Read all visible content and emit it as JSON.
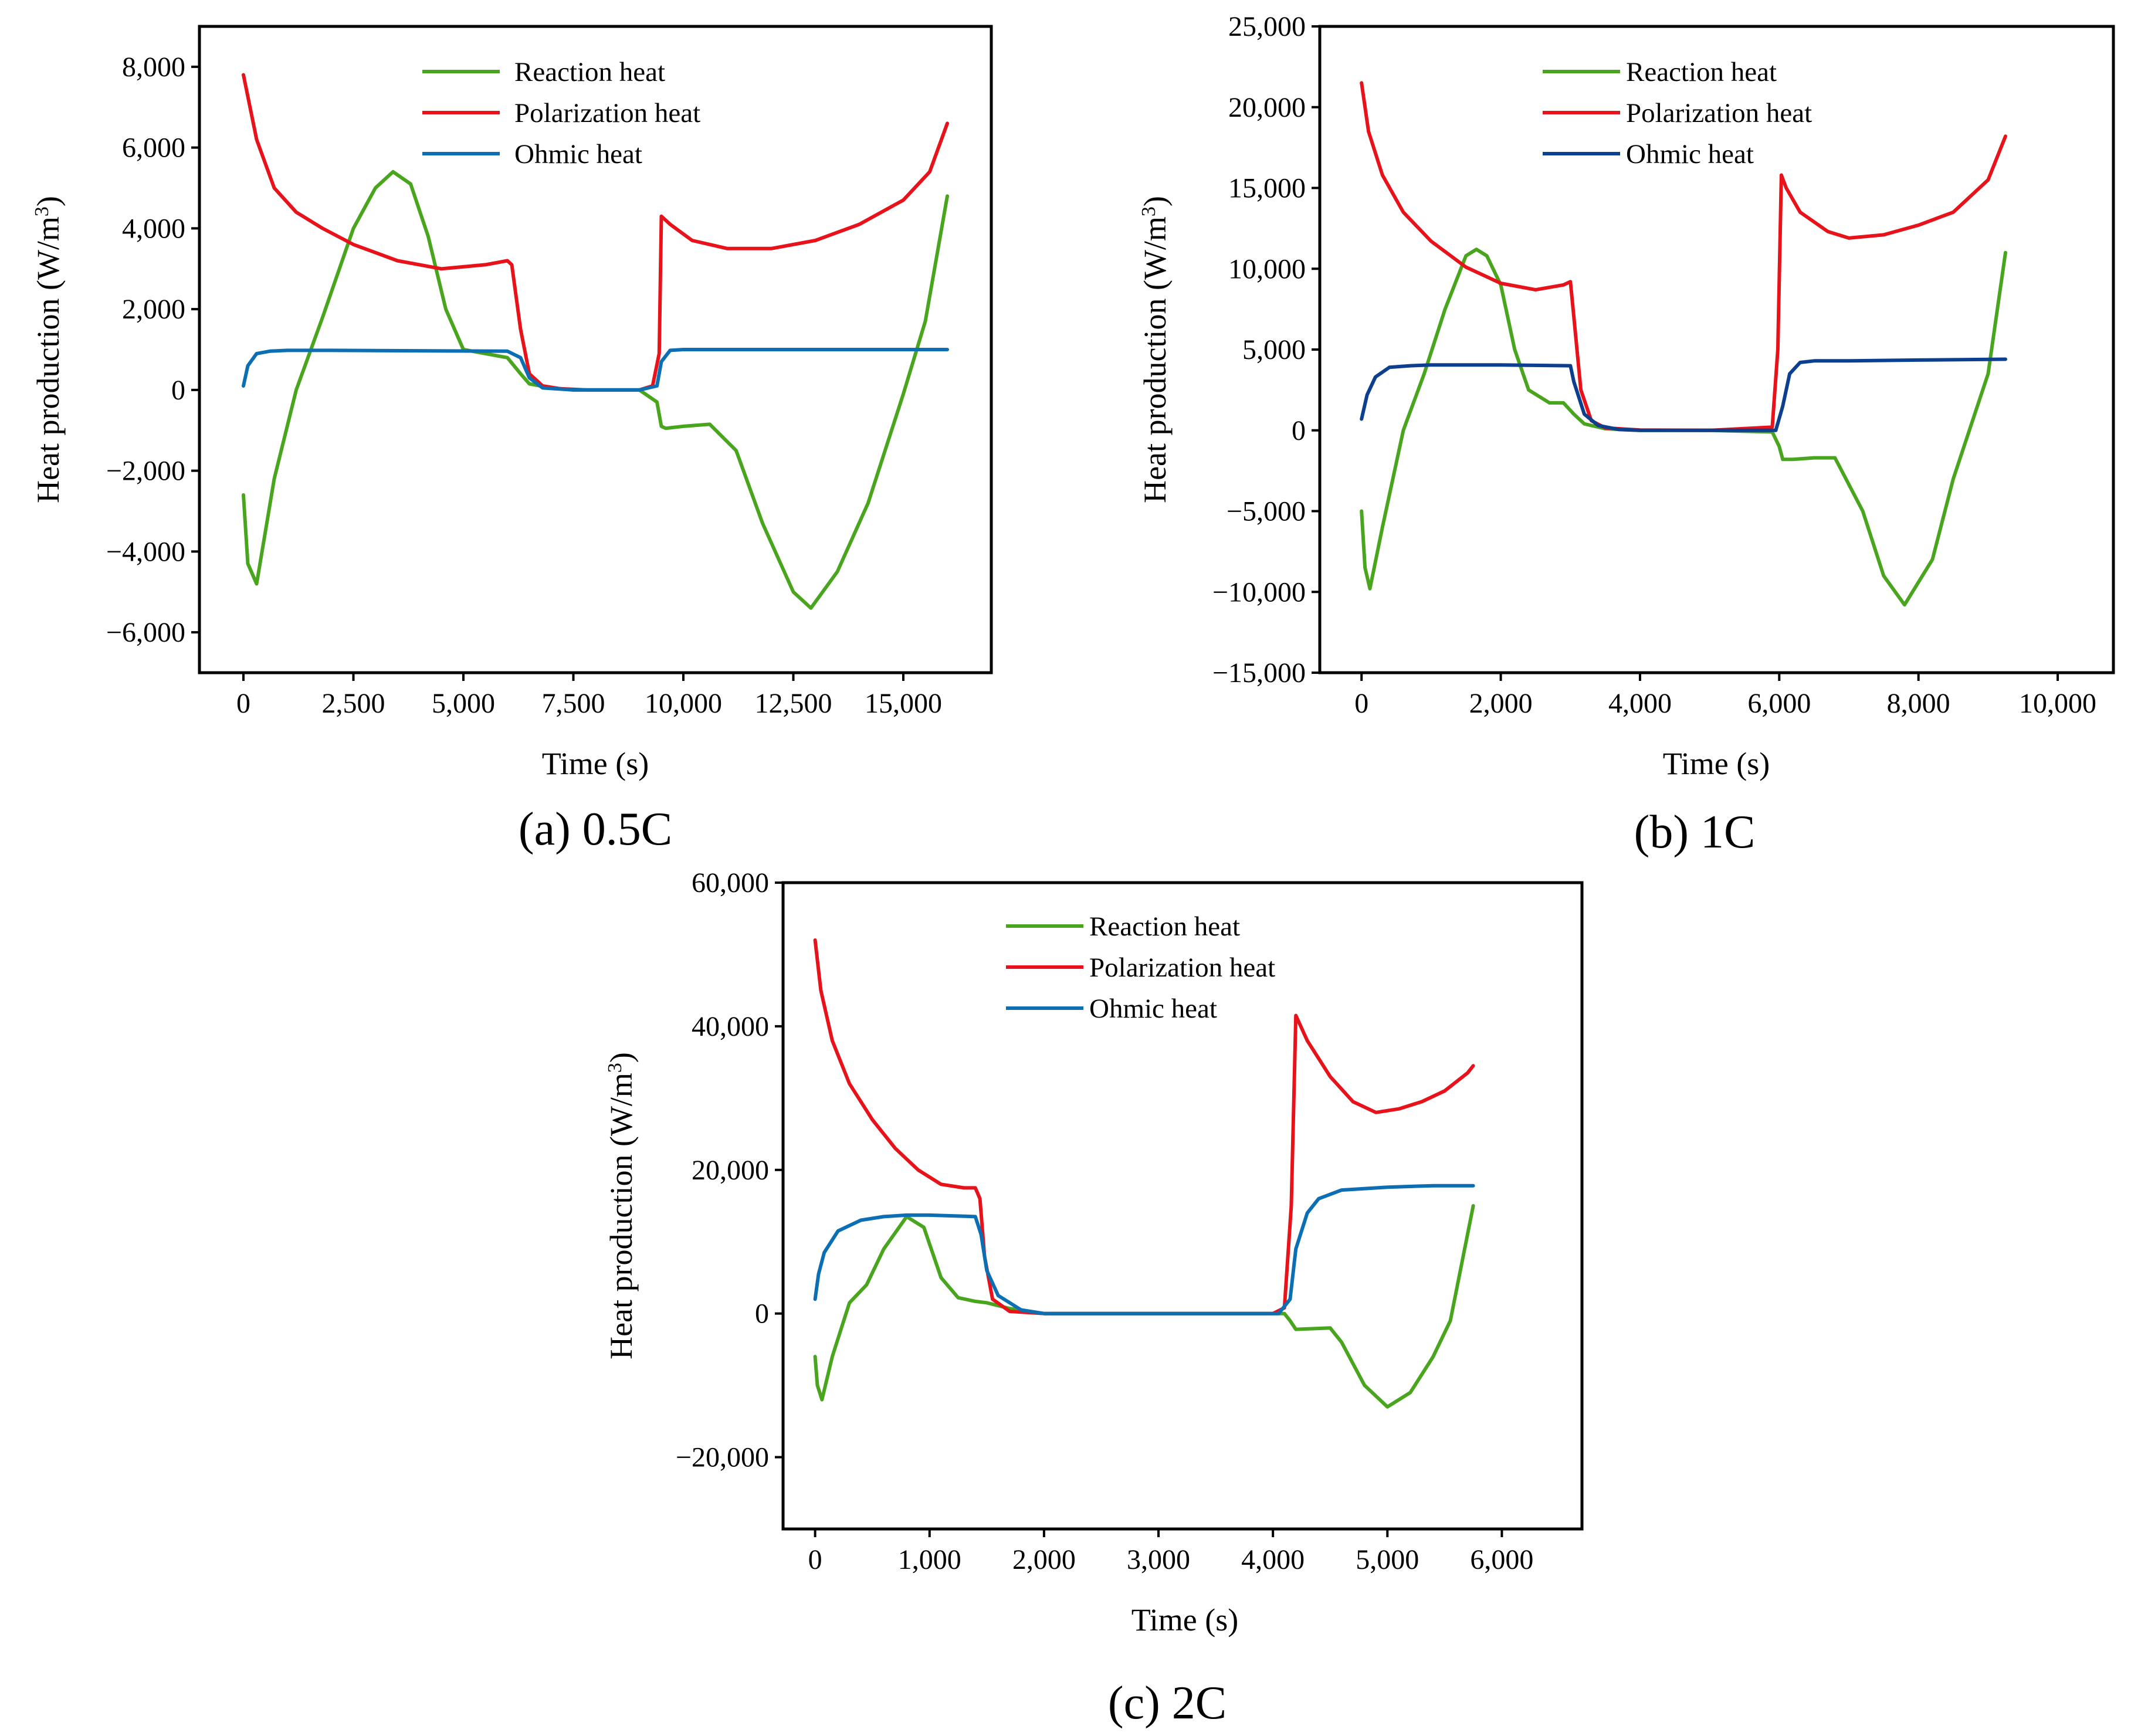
{
  "series_colors": {
    "reaction": "#4aa51e",
    "polarization": "#e8121a",
    "ohmic": "#0c6fb4",
    "ohmic_b": "#0d3f8f"
  },
  "chart_data": [
    {
      "type": "line",
      "id": "a",
      "caption": "(a) 0.5C",
      "xlabel": "Time (s)",
      "ylabel": "Heat production (W/m",
      "ylabel_sup": "3",
      "ylabel_close": ")",
      "xlim": [
        -1000,
        17000
      ],
      "ylim": [
        -7000,
        9000
      ],
      "xticks": [
        0,
        2500,
        5000,
        7500,
        10000,
        12500,
        15000
      ],
      "xtick_labels": [
        "0",
        "2,500",
        "5,000",
        "7,500",
        "10,000",
        "12,500",
        "15,000"
      ],
      "yticks": [
        -6000,
        -4000,
        -2000,
        0,
        2000,
        4000,
        6000,
        8000
      ],
      "ytick_labels": [
        "−6,000",
        "−4,000",
        "−2,000",
        "0",
        "2,000",
        "4,000",
        "6,000",
        "8,000"
      ],
      "legend": [
        "Reaction heat",
        "Polarization heat",
        "Ohmic heat"
      ],
      "series": [
        {
          "name": "Reaction heat",
          "color_key": "reaction",
          "x": [
            0,
            100,
            300,
            700,
            1200,
            1800,
            2500,
            3000,
            3400,
            3800,
            4200,
            4600,
            5000,
            5500,
            6000,
            6300,
            6500,
            7000,
            7500,
            8000,
            9000,
            9400,
            9500,
            9600,
            10000,
            10600,
            11200,
            11800,
            12500,
            12900,
            13500,
            14200,
            15000,
            15500,
            16000
          ],
          "y": [
            -2600,
            -4300,
            -4800,
            -2200,
            0,
            1800,
            4000,
            5000,
            5400,
            5100,
            3800,
            2000,
            1000,
            900,
            800,
            400,
            150,
            50,
            0,
            0,
            0,
            -300,
            -900,
            -950,
            -900,
            -850,
            -1500,
            -3300,
            -5000,
            -5400,
            -4500,
            -2800,
            -100,
            1700,
            4800
          ]
        },
        {
          "name": "Polarization heat",
          "color_key": "polarization",
          "x": [
            0,
            300,
            700,
            1200,
            1800,
            2500,
            3500,
            4500,
            5500,
            6000,
            6100,
            6300,
            6500,
            6800,
            7200,
            7800,
            9000,
            9300,
            9450,
            9500,
            9700,
            10200,
            11000,
            12000,
            13000,
            14000,
            15000,
            15600,
            16000
          ],
          "y": [
            7800,
            6200,
            5000,
            4400,
            4000,
            3600,
            3200,
            3000,
            3100,
            3200,
            3100,
            1500,
            400,
            100,
            30,
            0,
            0,
            100,
            900,
            4300,
            4100,
            3700,
            3500,
            3500,
            3700,
            4100,
            4700,
            5400,
            6600
          ]
        },
        {
          "name": "Ohmic heat",
          "color_key": "ohmic",
          "x": [
            0,
            100,
            300,
            600,
            1000,
            2000,
            4000,
            6000,
            6300,
            6500,
            6800,
            7500,
            9000,
            9400,
            9500,
            9700,
            10000,
            12000,
            14000,
            16000
          ],
          "y": [
            100,
            600,
            900,
            960,
            980,
            980,
            970,
            960,
            800,
            300,
            50,
            0,
            0,
            100,
            700,
            980,
            1000,
            1000,
            1000,
            1000
          ]
        }
      ]
    },
    {
      "type": "line",
      "id": "b",
      "caption": "(b) 1C",
      "xlabel": "Time (s)",
      "ylabel": "Heat production (W/m",
      "ylabel_sup": "3",
      "ylabel_close": ")",
      "xlim": [
        -600,
        10800
      ],
      "ylim": [
        -15000,
        25000
      ],
      "xticks": [
        0,
        2000,
        4000,
        6000,
        8000,
        10000
      ],
      "xtick_labels": [
        "0",
        "2,000",
        "4,000",
        "6,000",
        "8,000",
        "10,000"
      ],
      "yticks": [
        -15000,
        -10000,
        -5000,
        0,
        5000,
        10000,
        15000,
        20000,
        25000
      ],
      "ytick_labels": [
        "−15,000",
        "−10,000",
        "−5,000",
        "0",
        "5,000",
        "10,000",
        "15,000",
        "20,000",
        "25,000"
      ],
      "legend": [
        "Reaction heat",
        "Polarization heat",
        "Ohmic heat"
      ],
      "series": [
        {
          "name": "Reaction heat",
          "color_key": "reaction",
          "x": [
            0,
            50,
            120,
            300,
            600,
            900,
            1200,
            1500,
            1650,
            1800,
            2000,
            2200,
            2400,
            2700,
            2900,
            3050,
            3200,
            3500,
            4000,
            5000,
            5900,
            6000,
            6050,
            6200,
            6500,
            6800,
            7200,
            7500,
            7800,
            8200,
            8500,
            9000,
            9250
          ],
          "y": [
            -5000,
            -8500,
            -9800,
            -6000,
            0,
            3500,
            7500,
            10800,
            11200,
            10800,
            9000,
            5000,
            2500,
            1700,
            1700,
            1000,
            400,
            100,
            0,
            0,
            -100,
            -1000,
            -1800,
            -1800,
            -1700,
            -1700,
            -5000,
            -9000,
            -10800,
            -8000,
            -3000,
            3500,
            11000
          ]
        },
        {
          "name": "Polarization heat",
          "color_key": "polarization",
          "x": [
            0,
            100,
            300,
            600,
            1000,
            1500,
            2000,
            2500,
            2900,
            3000,
            3050,
            3150,
            3300,
            3500,
            4000,
            5000,
            5900,
            5980,
            6030,
            6100,
            6300,
            6700,
            7000,
            7500,
            8000,
            8500,
            9000,
            9250
          ],
          "y": [
            21500,
            18500,
            15800,
            13500,
            11700,
            10100,
            9100,
            8700,
            9000,
            9200,
            7000,
            2500,
            600,
            150,
            20,
            0,
            200,
            5000,
            15800,
            15000,
            13500,
            12300,
            11900,
            12100,
            12700,
            13500,
            15500,
            18200
          ]
        },
        {
          "name": "Ohmic heat",
          "color_key": "ohmic_b",
          "x": [
            0,
            80,
            200,
            400,
            700,
            1000,
            2000,
            3000,
            3050,
            3200,
            3400,
            3700,
            4000,
            5000,
            5950,
            6050,
            6150,
            6300,
            6500,
            7000,
            8000,
            9250
          ],
          "y": [
            700,
            2200,
            3300,
            3900,
            4000,
            4050,
            4050,
            4000,
            3000,
            1000,
            300,
            50,
            0,
            0,
            0,
            1500,
            3500,
            4200,
            4300,
            4300,
            4350,
            4400
          ]
        }
      ]
    },
    {
      "type": "line",
      "id": "c",
      "caption": "(c) 2C",
      "xlabel": "Time (s)",
      "ylabel": "Heat production (W/m",
      "ylabel_sup": "3",
      "ylabel_close": ")",
      "xlim": [
        -280,
        6700
      ],
      "ylim": [
        -30000,
        60000
      ],
      "xticks": [
        0,
        1000,
        2000,
        3000,
        4000,
        5000,
        6000
      ],
      "xtick_labels": [
        "0",
        "1,000",
        "2,000",
        "3,000",
        "4,000",
        "5,000",
        "6,000"
      ],
      "yticks": [
        -20000,
        0,
        20000,
        40000,
        60000
      ],
      "ytick_labels": [
        "−20,000",
        "0",
        "20,000",
        "40,000",
        "60,000"
      ],
      "legend": [
        "Reaction heat",
        "Polarization heat",
        "Ohmic heat"
      ],
      "series": [
        {
          "name": "Reaction heat",
          "color_key": "reaction",
          "x": [
            0,
            20,
            60,
            150,
            300,
            450,
            600,
            800,
            950,
            1100,
            1250,
            1400,
            1500,
            1700,
            2000,
            3000,
            4100,
            4150,
            4200,
            4500,
            4600,
            4800,
            5000,
            5200,
            5400,
            5550,
            5750
          ],
          "y": [
            -6000,
            -10000,
            -12000,
            -6000,
            1500,
            4000,
            9000,
            13500,
            12000,
            5000,
            2200,
            1700,
            1500,
            700,
            0,
            0,
            0,
            -1000,
            -2200,
            -2000,
            -4000,
            -10000,
            -13000,
            -11000,
            -6000,
            -1000,
            15000
          ]
        },
        {
          "name": "Polarization heat",
          "color_key": "polarization",
          "x": [
            0,
            50,
            150,
            300,
            500,
            700,
            900,
            1100,
            1300,
            1400,
            1440,
            1480,
            1550,
            1700,
            2000,
            3000,
            4000,
            4100,
            4160,
            4200,
            4300,
            4500,
            4700,
            4900,
            5100,
            5300,
            5500,
            5700,
            5750
          ],
          "y": [
            52000,
            45000,
            38000,
            32000,
            27000,
            23000,
            20000,
            18000,
            17500,
            17500,
            16000,
            8000,
            2000,
            300,
            0,
            0,
            0,
            800,
            15000,
            41500,
            38000,
            33000,
            29500,
            28000,
            28500,
            29500,
            31000,
            33500,
            34500
          ]
        },
        {
          "name": "Ohmic heat",
          "color_key": "ohmic",
          "x": [
            0,
            30,
            80,
            200,
            400,
            600,
            800,
            1000,
            1200,
            1400,
            1450,
            1500,
            1600,
            1800,
            2000,
            3000,
            4050,
            4150,
            4200,
            4300,
            4400,
            4600,
            5000,
            5400,
            5750
          ],
          "y": [
            2000,
            5500,
            8500,
            11500,
            13000,
            13500,
            13700,
            13700,
            13600,
            13500,
            11000,
            6000,
            2500,
            500,
            0,
            0,
            0,
            2000,
            9000,
            14000,
            16000,
            17200,
            17600,
            17800,
            17800
          ]
        }
      ]
    }
  ]
}
